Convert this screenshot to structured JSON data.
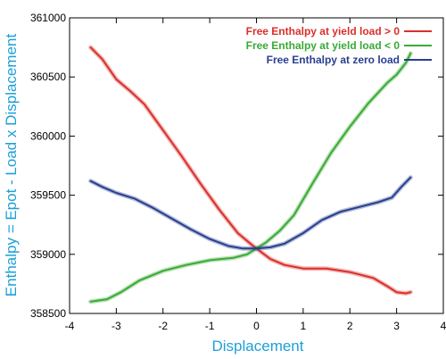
{
  "chart_data": {
    "type": "line",
    "title": "",
    "xlabel": "Displacement",
    "ylabel": "Enthalpy = Epot - Load x Displacement",
    "xlim": [
      -4,
      4
    ],
    "ylim": [
      358500,
      361000
    ],
    "xticks": [
      -4,
      -3,
      -2,
      -1,
      0,
      1,
      2,
      3,
      4
    ],
    "yticks": [
      358500,
      359000,
      359500,
      360000,
      360500,
      361000
    ],
    "xtick_labels": [
      "-4",
      "-3",
      "-2",
      "-1",
      "0",
      "1",
      "2",
      "3",
      "4"
    ],
    "ytick_labels": [
      "358500",
      "359000",
      "359500",
      "360000",
      "360500",
      "361000"
    ],
    "grid": false,
    "legend_position": "top-right",
    "series": [
      {
        "name": "Free Enthalpy at yield load > 0",
        "color": "#d9302b",
        "x": [
          -3.55,
          -3.3,
          -3.0,
          -2.7,
          -2.4,
          -2.0,
          -1.6,
          -1.2,
          -0.8,
          -0.4,
          -0.1,
          0.1,
          0.3,
          0.6,
          1.0,
          1.5,
          2.0,
          2.5,
          2.8,
          3.0,
          3.2,
          3.3
        ],
        "y": [
          360750,
          360650,
          360480,
          360380,
          360270,
          360050,
          359830,
          359600,
          359380,
          359180,
          359080,
          359020,
          358960,
          358910,
          358880,
          358880,
          358850,
          358800,
          358730,
          358680,
          358670,
          358680
        ]
      },
      {
        "name": "Free Enthalpy at yield load < 0",
        "color": "#3aaa35",
        "x": [
          -3.55,
          -3.2,
          -2.9,
          -2.5,
          -2.0,
          -1.5,
          -1.0,
          -0.5,
          -0.2,
          0.0,
          0.2,
          0.5,
          0.8,
          1.2,
          1.6,
          2.0,
          2.4,
          2.8,
          3.0,
          3.2,
          3.3
        ],
        "y": [
          358600,
          358620,
          358680,
          358780,
          358860,
          358910,
          358950,
          358970,
          359000,
          359050,
          359100,
          359200,
          359330,
          359600,
          359860,
          360080,
          360280,
          360450,
          360520,
          360620,
          360700
        ]
      },
      {
        "name": "Free Enthalpy at zero load",
        "color": "#283f8f",
        "x": [
          -3.55,
          -3.3,
          -3.0,
          -2.6,
          -2.2,
          -1.8,
          -1.4,
          -1.0,
          -0.6,
          -0.3,
          0.0,
          0.3,
          0.6,
          1.0,
          1.4,
          1.8,
          2.2,
          2.6,
          2.9,
          3.1,
          3.3
        ],
        "y": [
          359620,
          359570,
          359520,
          359470,
          359390,
          359300,
          359210,
          359130,
          359070,
          359050,
          359050,
          359060,
          359090,
          359180,
          359290,
          359360,
          359400,
          359440,
          359480,
          359570,
          359650
        ]
      }
    ]
  }
}
